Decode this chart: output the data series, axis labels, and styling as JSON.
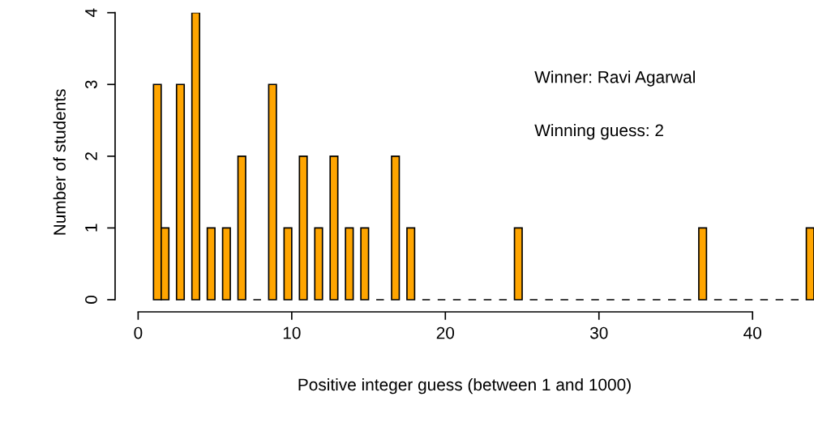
{
  "chart_data": {
    "type": "bar",
    "xlabel": "Positive integer guess (between 1 and 1000)",
    "ylabel": "Number of students",
    "x": [
      1.25,
      1.75,
      2.75,
      3.75,
      4.75,
      5.75,
      6.75,
      7.75,
      8.75,
      9.75,
      10.75,
      11.75,
      12.75,
      13.75,
      14.75,
      15.75,
      16.75,
      17.75,
      18.75,
      19.75,
      20.75,
      21.75,
      22.75,
      23.75,
      24.75,
      25.75,
      26.75,
      27.75,
      28.75,
      29.75,
      30.75,
      31.75,
      32.75,
      33.75,
      34.75,
      35.75,
      36.75,
      37.75,
      38.75,
      39.75,
      40.75,
      41.75,
      42.75,
      43.75
    ],
    "values": [
      3,
      1,
      3,
      4,
      1,
      1,
      2,
      0,
      3,
      1,
      2,
      1,
      2,
      1,
      1,
      0,
      2,
      1,
      0,
      0,
      0,
      0,
      0,
      0,
      1,
      0,
      0,
      0,
      0,
      0,
      0,
      0,
      0,
      0,
      0,
      0,
      1,
      0,
      0,
      0,
      0,
      0,
      0,
      1
    ],
    "colors": [
      "#ffa500",
      "#ffa500",
      "#ffa500",
      "#ffa500",
      "#ffa500",
      "#ffa500",
      "#ffa500",
      "#000000",
      "#ffa500",
      "#ffa500",
      "#ffa500",
      "#ffa500",
      "#ffa500",
      "#ffa500",
      "#ffa500",
      "#000000",
      "#ffa500",
      "#ffa500",
      "#000000",
      "#000000",
      "#000000",
      "#000000",
      "#000000",
      "#000000",
      "#ffa500",
      "#000000",
      "#000000",
      "#000000",
      "#000000",
      "#000000",
      "#000000",
      "#000000",
      "#000000",
      "#000000",
      "#000000",
      "#000000",
      "#ffa500",
      "#000000",
      "#000000",
      "#000000",
      "#000000",
      "#000000",
      "#000000",
      "#ffa500"
    ],
    "xlim": [
      -1.5,
      44
    ],
    "xticks": [
      0,
      10,
      20,
      30,
      40
    ],
    "ylim": [
      -0.17,
      4
    ],
    "yticks": [
      0,
      1,
      2,
      3,
      4
    ],
    "grid": false,
    "legend": false,
    "annotations": [
      "Winner: Ravi Agarwal",
      "Winning guess: 2"
    ]
  }
}
